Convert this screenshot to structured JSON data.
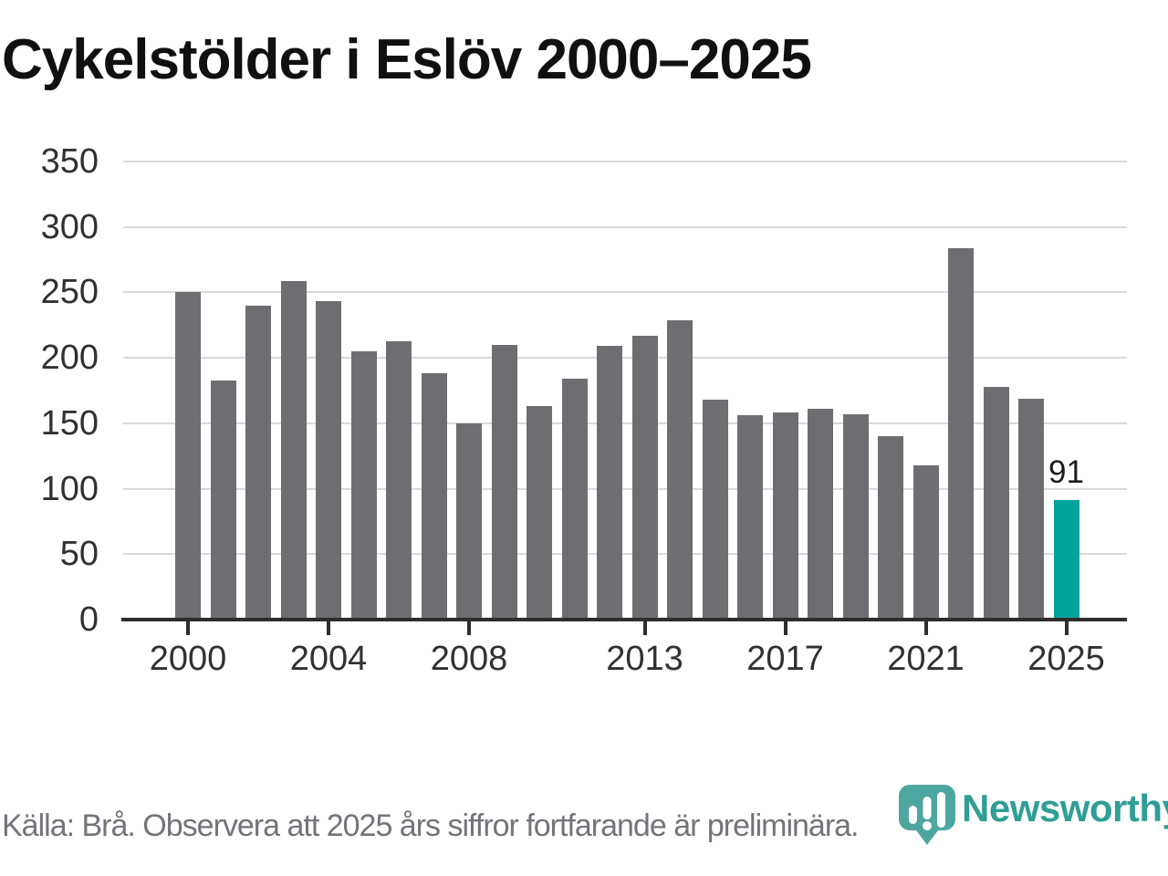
{
  "title": "Cykelstölder i Eslöv 2000–2025",
  "chart_data": {
    "type": "bar",
    "title": "Cykelstölder i Eslöv 2000–2025",
    "categories": [
      2000,
      2001,
      2002,
      2003,
      2004,
      2005,
      2006,
      2007,
      2008,
      2009,
      2010,
      2011,
      2012,
      2013,
      2014,
      2015,
      2016,
      2017,
      2018,
      2019,
      2020,
      2021,
      2022,
      2023,
      2024,
      2025
    ],
    "values": [
      250,
      183,
      240,
      259,
      243,
      205,
      213,
      188,
      150,
      210,
      163,
      184,
      209,
      217,
      229,
      168,
      156,
      158,
      161,
      157,
      140,
      118,
      284,
      178,
      169,
      91
    ],
    "xlabel": "",
    "ylabel": "",
    "ylim": [
      0,
      350
    ],
    "yticks": [
      0,
      50,
      100,
      150,
      200,
      250,
      300,
      350
    ],
    "xticks": [
      2000,
      2004,
      2008,
      2013,
      2017,
      2021,
      2025
    ],
    "grid": true,
    "legend_position": "none",
    "bar_color": "#6e6d72",
    "highlight": {
      "year": 2025,
      "label": "91",
      "color": "#00a49a"
    }
  },
  "footer": {
    "source_note": "Källa: Brå. Observera att 2025 års siffror fortfarande är preliminära."
  },
  "branding": {
    "logo_text": "Newsworthy",
    "logo_icon": "newsworthy-pin-bar-chart-icon",
    "logo_mark_color": "#4da7a0",
    "logo_text_color": "#2f9e96"
  }
}
